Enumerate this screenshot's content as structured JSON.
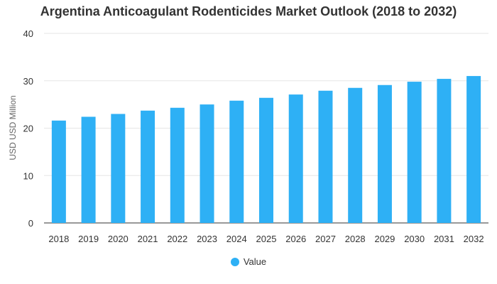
{
  "chart_data": {
    "type": "bar",
    "title": "Argentina Anticoagulant Rodenticides Market Outlook (2018 to 2032)",
    "xlabel": "",
    "ylabel": "USD USD Million",
    "categories": [
      "2018",
      "2019",
      "2020",
      "2021",
      "2022",
      "2023",
      "2024",
      "2025",
      "2026",
      "2027",
      "2028",
      "2029",
      "2030",
      "2031",
      "2032"
    ],
    "series": [
      {
        "name": "Value",
        "values": [
          21.6,
          22.4,
          23.0,
          23.7,
          24.3,
          25.0,
          25.8,
          26.4,
          27.1,
          27.9,
          28.5,
          29.1,
          29.8,
          30.4,
          31.0
        ],
        "color": "#2eb0f5"
      }
    ],
    "ylim": [
      0,
      40
    ],
    "yticks": [
      0,
      10,
      20,
      30,
      40
    ],
    "grid": true,
    "legend_position": "bottom-center"
  }
}
